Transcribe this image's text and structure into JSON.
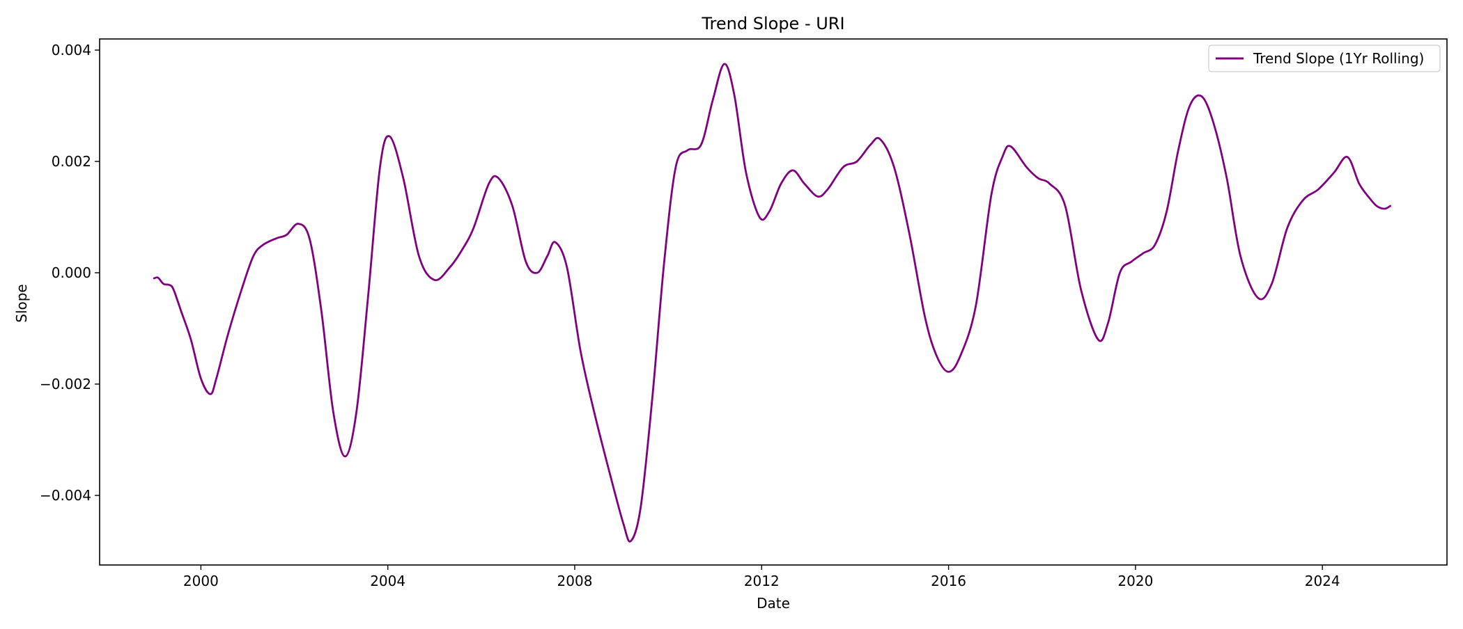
{
  "chart_data": {
    "type": "line",
    "title": "Trend Slope - URI",
    "xlabel": "Date",
    "ylabel": "Slope",
    "x_axis_type": "date",
    "xlim": [
      "1997-11-01",
      "2026-09-01"
    ],
    "ylim": [
      -0.00525,
      0.0042
    ],
    "x_ticks": [
      2000,
      2004,
      2008,
      2012,
      2016,
      2020,
      2024
    ],
    "y_ticks": [
      -0.004,
      -0.002,
      0.0,
      0.002,
      0.004
    ],
    "y_tick_labels": [
      "−0.004",
      "−0.002",
      "0.000",
      "0.002",
      "0.004"
    ],
    "grid": false,
    "legend_position": "top-right",
    "series": [
      {
        "name": "Trend Slope (1Yr Rolling)",
        "color": "#800080",
        "points": [
          [
            "1998-12-31",
            -0.0001
          ],
          [
            "1999-02-01",
            -9e-05
          ],
          [
            "1999-03-15",
            -0.0002
          ],
          [
            "1999-05-01",
            -0.00022
          ],
          [
            "1999-06-01",
            -0.0003
          ],
          [
            "1999-08-01",
            -0.0007
          ],
          [
            "1999-10-15",
            -0.0012
          ],
          [
            "2000-01-01",
            -0.0019
          ],
          [
            "2000-03-15",
            -0.00218
          ],
          [
            "2000-05-01",
            -0.0019
          ],
          [
            "2000-08-01",
            -0.0011
          ],
          [
            "2000-11-15",
            -0.0003
          ],
          [
            "2001-02-15",
            0.0003
          ],
          [
            "2001-05-01",
            0.0005
          ],
          [
            "2001-08-15",
            0.00062
          ],
          [
            "2001-11-01",
            0.00068
          ],
          [
            "2002-02-01",
            0.00088
          ],
          [
            "2002-05-01",
            0.0006
          ],
          [
            "2002-08-01",
            -0.0007
          ],
          [
            "2002-11-01",
            -0.0025
          ],
          [
            "2003-02-01",
            -0.0033
          ],
          [
            "2003-05-01",
            -0.0025
          ],
          [
            "2003-08-01",
            -0.0004
          ],
          [
            "2003-11-01",
            0.0019
          ],
          [
            "2004-01-15",
            0.00245
          ],
          [
            "2004-05-01",
            0.0017
          ],
          [
            "2004-09-01",
            0.0003
          ],
          [
            "2005-01-01",
            -0.00013
          ],
          [
            "2005-05-01",
            0.0001
          ],
          [
            "2005-08-01",
            0.0004
          ],
          [
            "2005-11-01",
            0.0008
          ],
          [
            "2006-03-01",
            0.0016
          ],
          [
            "2006-05-15",
            0.0017
          ],
          [
            "2006-09-01",
            0.0012
          ],
          [
            "2006-12-15",
            0.0002
          ],
          [
            "2007-03-15",
            0.0
          ],
          [
            "2007-06-01",
            0.0003
          ],
          [
            "2007-08-01",
            0.00055
          ],
          [
            "2007-11-01",
            0.0001
          ],
          [
            "2008-02-15",
            -0.0014
          ],
          [
            "2008-06-01",
            -0.0025
          ],
          [
            "2008-10-01",
            -0.0036
          ],
          [
            "2009-01-15",
            -0.0045
          ],
          [
            "2009-03-15",
            -0.00482
          ],
          [
            "2009-06-01",
            -0.0042
          ],
          [
            "2009-09-01",
            -0.0022
          ],
          [
            "2009-12-01",
            0.0002
          ],
          [
            "2010-03-01",
            0.0019
          ],
          [
            "2010-06-01",
            0.0022
          ],
          [
            "2010-09-15",
            0.0023
          ],
          [
            "2010-12-15",
            0.0031
          ],
          [
            "2011-03-15",
            0.00375
          ],
          [
            "2011-06-01",
            0.0032
          ],
          [
            "2011-09-01",
            0.0018
          ],
          [
            "2011-12-15",
            0.001
          ],
          [
            "2012-03-01",
            0.0011
          ],
          [
            "2012-06-01",
            0.0016
          ],
          [
            "2012-09-01",
            0.00184
          ],
          [
            "2012-12-01",
            0.0016
          ],
          [
            "2013-03-15",
            0.00137
          ],
          [
            "2013-06-01",
            0.0015
          ],
          [
            "2013-10-01",
            0.0019
          ],
          [
            "2014-01-15",
            0.002
          ],
          [
            "2014-05-01",
            0.0023
          ],
          [
            "2014-07-15",
            0.0024
          ],
          [
            "2014-11-01",
            0.0019
          ],
          [
            "2015-03-01",
            0.0007
          ],
          [
            "2015-07-01",
            -0.0008
          ],
          [
            "2015-10-01",
            -0.0015
          ],
          [
            "2016-01-01",
            -0.00178
          ],
          [
            "2016-04-01",
            -0.0015
          ],
          [
            "2016-08-01",
            -0.0006
          ],
          [
            "2016-12-01",
            0.0014
          ],
          [
            "2017-03-01",
            0.0021
          ],
          [
            "2017-05-01",
            0.00227
          ],
          [
            "2017-09-01",
            0.0019
          ],
          [
            "2017-12-01",
            0.0017
          ],
          [
            "2018-03-01",
            0.0016
          ],
          [
            "2018-07-01",
            0.0012
          ],
          [
            "2018-11-01",
            -0.0003
          ],
          [
            "2019-03-15",
            -0.0012
          ],
          [
            "2019-06-01",
            -0.0009
          ],
          [
            "2019-09-01",
            0.0
          ],
          [
            "2019-12-01",
            0.0002
          ],
          [
            "2020-03-01",
            0.00035
          ],
          [
            "2020-06-01",
            0.0005
          ],
          [
            "2020-09-01",
            0.0011
          ],
          [
            "2020-12-01",
            0.0022
          ],
          [
            "2021-03-01",
            0.003
          ],
          [
            "2021-06-01",
            0.00317
          ],
          [
            "2021-09-01",
            0.0027
          ],
          [
            "2021-12-15",
            0.0017
          ],
          [
            "2022-04-01",
            0.0003
          ],
          [
            "2022-08-15",
            -0.00045
          ],
          [
            "2022-12-01",
            -0.0002
          ],
          [
            "2023-04-01",
            0.0008
          ],
          [
            "2023-08-01",
            0.0013
          ],
          [
            "2023-12-01",
            0.0015
          ],
          [
            "2024-04-01",
            0.0018
          ],
          [
            "2024-07-15",
            0.00208
          ],
          [
            "2024-10-15",
            0.0016
          ],
          [
            "2025-01-01",
            0.00135
          ],
          [
            "2025-03-01",
            0.0012
          ],
          [
            "2025-05-01",
            0.00115
          ],
          [
            "2025-06-15",
            0.0012
          ]
        ]
      }
    ]
  }
}
